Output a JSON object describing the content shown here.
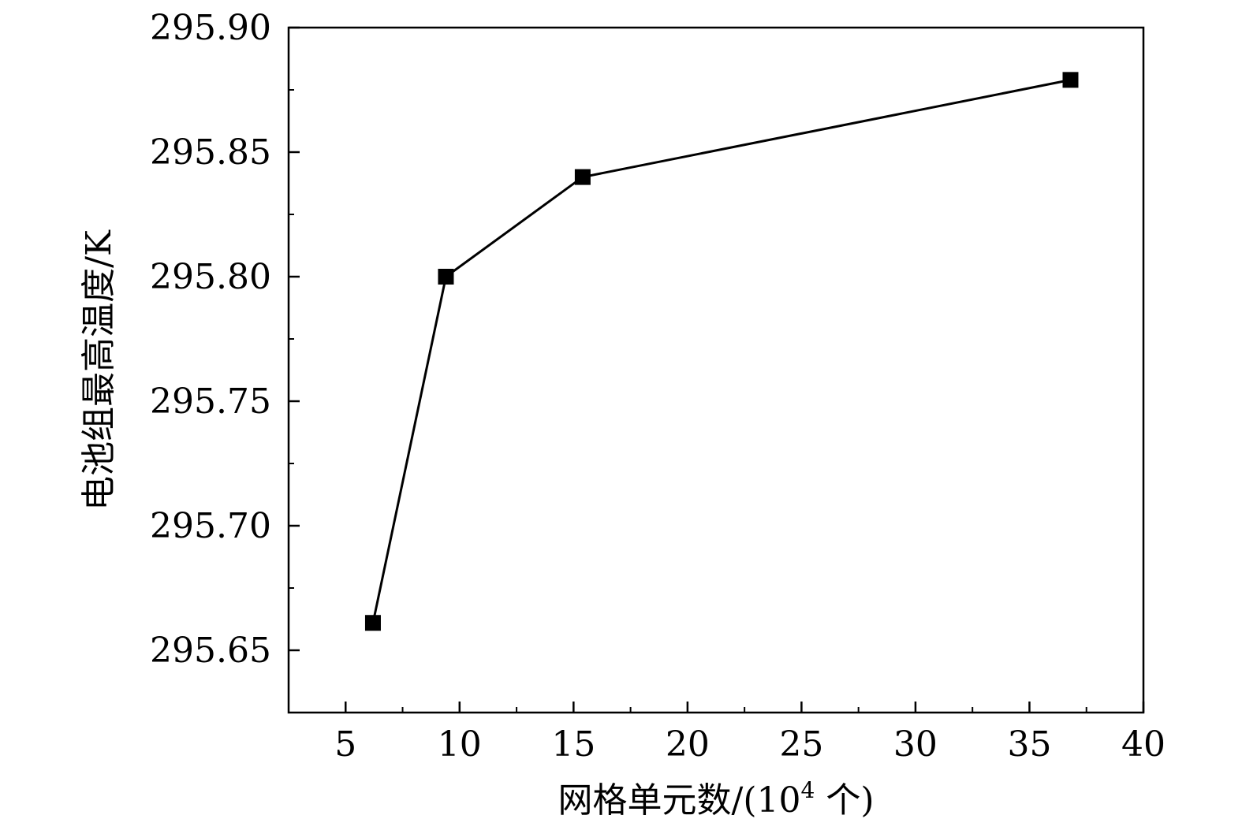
{
  "chart_data": {
    "type": "line",
    "title": "",
    "xlabel": "网格单元数/(10",
    "xlabel_sup": "4",
    "xlabel_tail": " 个)",
    "ylabel": "电池组最高温度/K",
    "xlim": [
      2.5,
      40
    ],
    "ylim": [
      295.625,
      295.9
    ],
    "x_ticks": [
      "5",
      "10",
      "15",
      "20",
      "25",
      "30",
      "35",
      "40"
    ],
    "y_ticks": [
      "295.65",
      "295.70",
      "295.75",
      "295.80",
      "295.85",
      "295.90"
    ],
    "grid": false,
    "legend": "none",
    "series": [
      {
        "x": [
          6.2,
          9.4,
          15.4,
          36.8
        ],
        "y": [
          295.661,
          295.8,
          295.84,
          295.879
        ],
        "marker": "square",
        "color": "#000000"
      }
    ]
  }
}
